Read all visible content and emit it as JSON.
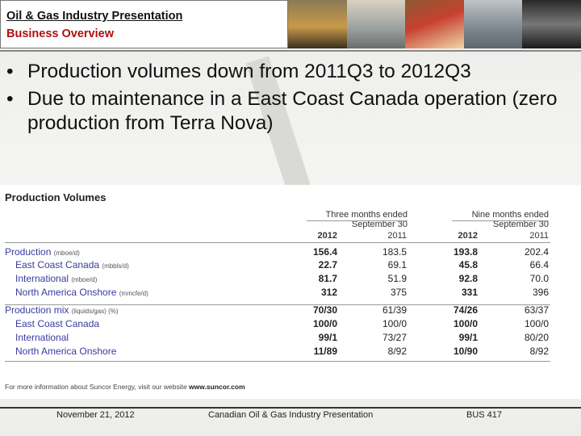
{
  "header": {
    "title": "Oil & Gas Industry Presentation",
    "subtitle": "Business Overview"
  },
  "bullets": [
    "Production volumes down from 2011Q3 to  2012Q3",
    "Due to maintenance in a East Coast Canada operation (zero production from Terra Nova)"
  ],
  "table": {
    "title": "Production  Volumes",
    "group1": "Three months ended September 30",
    "group2": "Nine months ended September 30",
    "years": [
      "2012",
      "2011",
      "2012",
      "2011"
    ],
    "rows": [
      {
        "label": "Production",
        "unit": "(mboe/d)",
        "indent": false,
        "values": [
          "156.4",
          "183.5",
          "193.8",
          "202.4"
        ]
      },
      {
        "label": "East Coast Canada",
        "unit": "(mbbls/d)",
        "indent": true,
        "values": [
          "22.7",
          "69.1",
          "45.8",
          "66.4"
        ]
      },
      {
        "label": "International",
        "unit": "(mboe/d)",
        "indent": true,
        "values": [
          "81.7",
          "51.9",
          "92.8",
          "70.0"
        ]
      },
      {
        "label": "North America Onshore",
        "unit": "(mmcfe/d)",
        "indent": true,
        "values": [
          "312",
          "375",
          "331",
          "396"
        ]
      },
      {
        "label": "Production mix",
        "unit": "(liquids/gas) (%)",
        "indent": false,
        "values": [
          "70/30",
          "61/39",
          "74/26",
          "63/37"
        ]
      },
      {
        "label": "East Coast Canada",
        "unit": "",
        "indent": true,
        "values": [
          "100/0",
          "100/0",
          "100/0",
          "100/0"
        ]
      },
      {
        "label": "International",
        "unit": "",
        "indent": true,
        "values": [
          "99/1",
          "73/27",
          "99/1",
          "80/20"
        ]
      },
      {
        "label": "North America Onshore",
        "unit": "",
        "indent": true,
        "values": [
          "11/89",
          "8/92",
          "10/90",
          "8/92"
        ]
      }
    ],
    "footnote_prefix": "For more information about Suncor Energy, visit our website",
    "footnote_link": "www.suncor.com"
  },
  "footer": {
    "date": "November 21, 2012",
    "center": "Canadian Oil & Gas Industry Presentation",
    "course": "BUS 417"
  }
}
